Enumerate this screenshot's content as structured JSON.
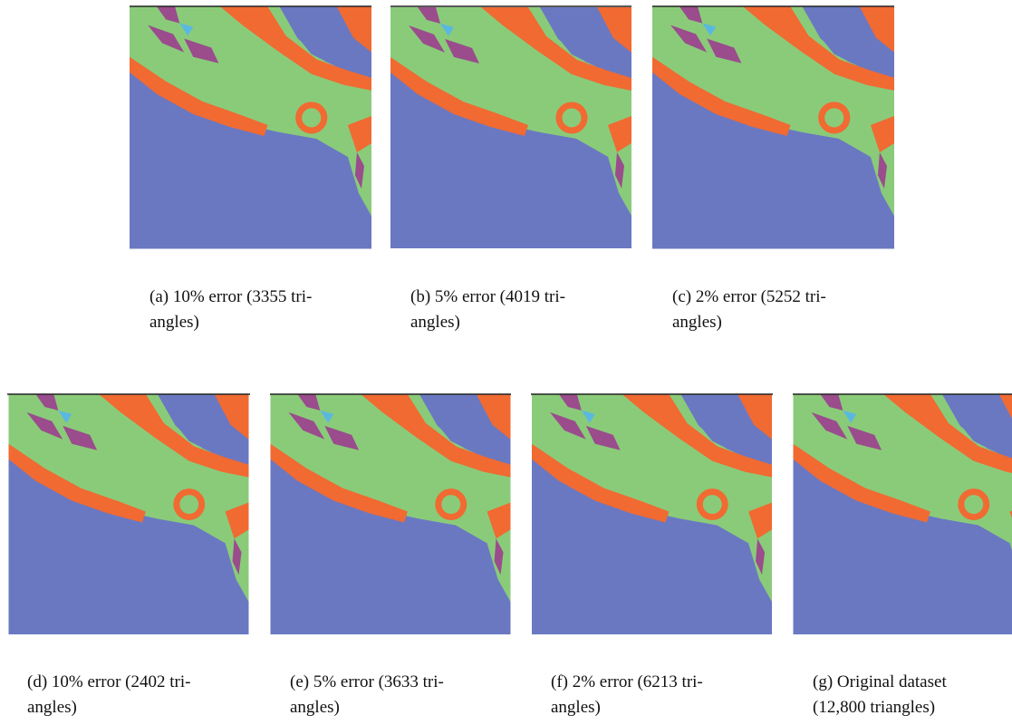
{
  "panels": [
    {
      "caption": [
        "(a) 10% error (3355 tri-",
        "angles)"
      ]
    },
    {
      "caption": [
        "(b) 5% error (4019 tri-",
        "angles)"
      ]
    },
    {
      "caption": [
        "(c) 2% error (5252 tri-",
        "angles)"
      ]
    },
    {
      "caption": [
        "(d) 10% error (2402 tri-",
        "angles)"
      ]
    },
    {
      "caption": [
        "(e) 5% error (3633 tri-",
        "angles)"
      ]
    },
    {
      "caption": [
        "(f) 2% error (6213 tri-",
        "angles)"
      ]
    },
    {
      "caption": [
        "(g) Original dataset",
        "(12,800 triangles)"
      ]
    }
  ]
}
